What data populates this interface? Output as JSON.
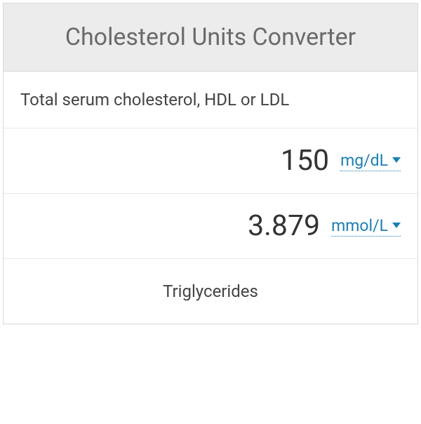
{
  "header": {
    "title": "Cholesterol Units Converter"
  },
  "section1": {
    "label": "Total serum cholesterol, HDL or LDL",
    "inputs": [
      {
        "value": "150",
        "unit": "mg/dL"
      },
      {
        "value": "3.879",
        "unit": "mmol/L"
      }
    ]
  },
  "section2": {
    "label": "Triglycerides"
  },
  "colors": {
    "header_bg": "#ececec",
    "header_text": "#6a6a6a",
    "border": "#d8d8d8",
    "row_border": "#e8e8e8",
    "label_text": "#444444",
    "value_text": "#333333",
    "link_color": "#1b7fb3",
    "background": "#ffffff"
  },
  "typography": {
    "title_fontsize": 34,
    "label_fontsize": 24,
    "value_fontsize": 41,
    "unit_fontsize": 23
  }
}
